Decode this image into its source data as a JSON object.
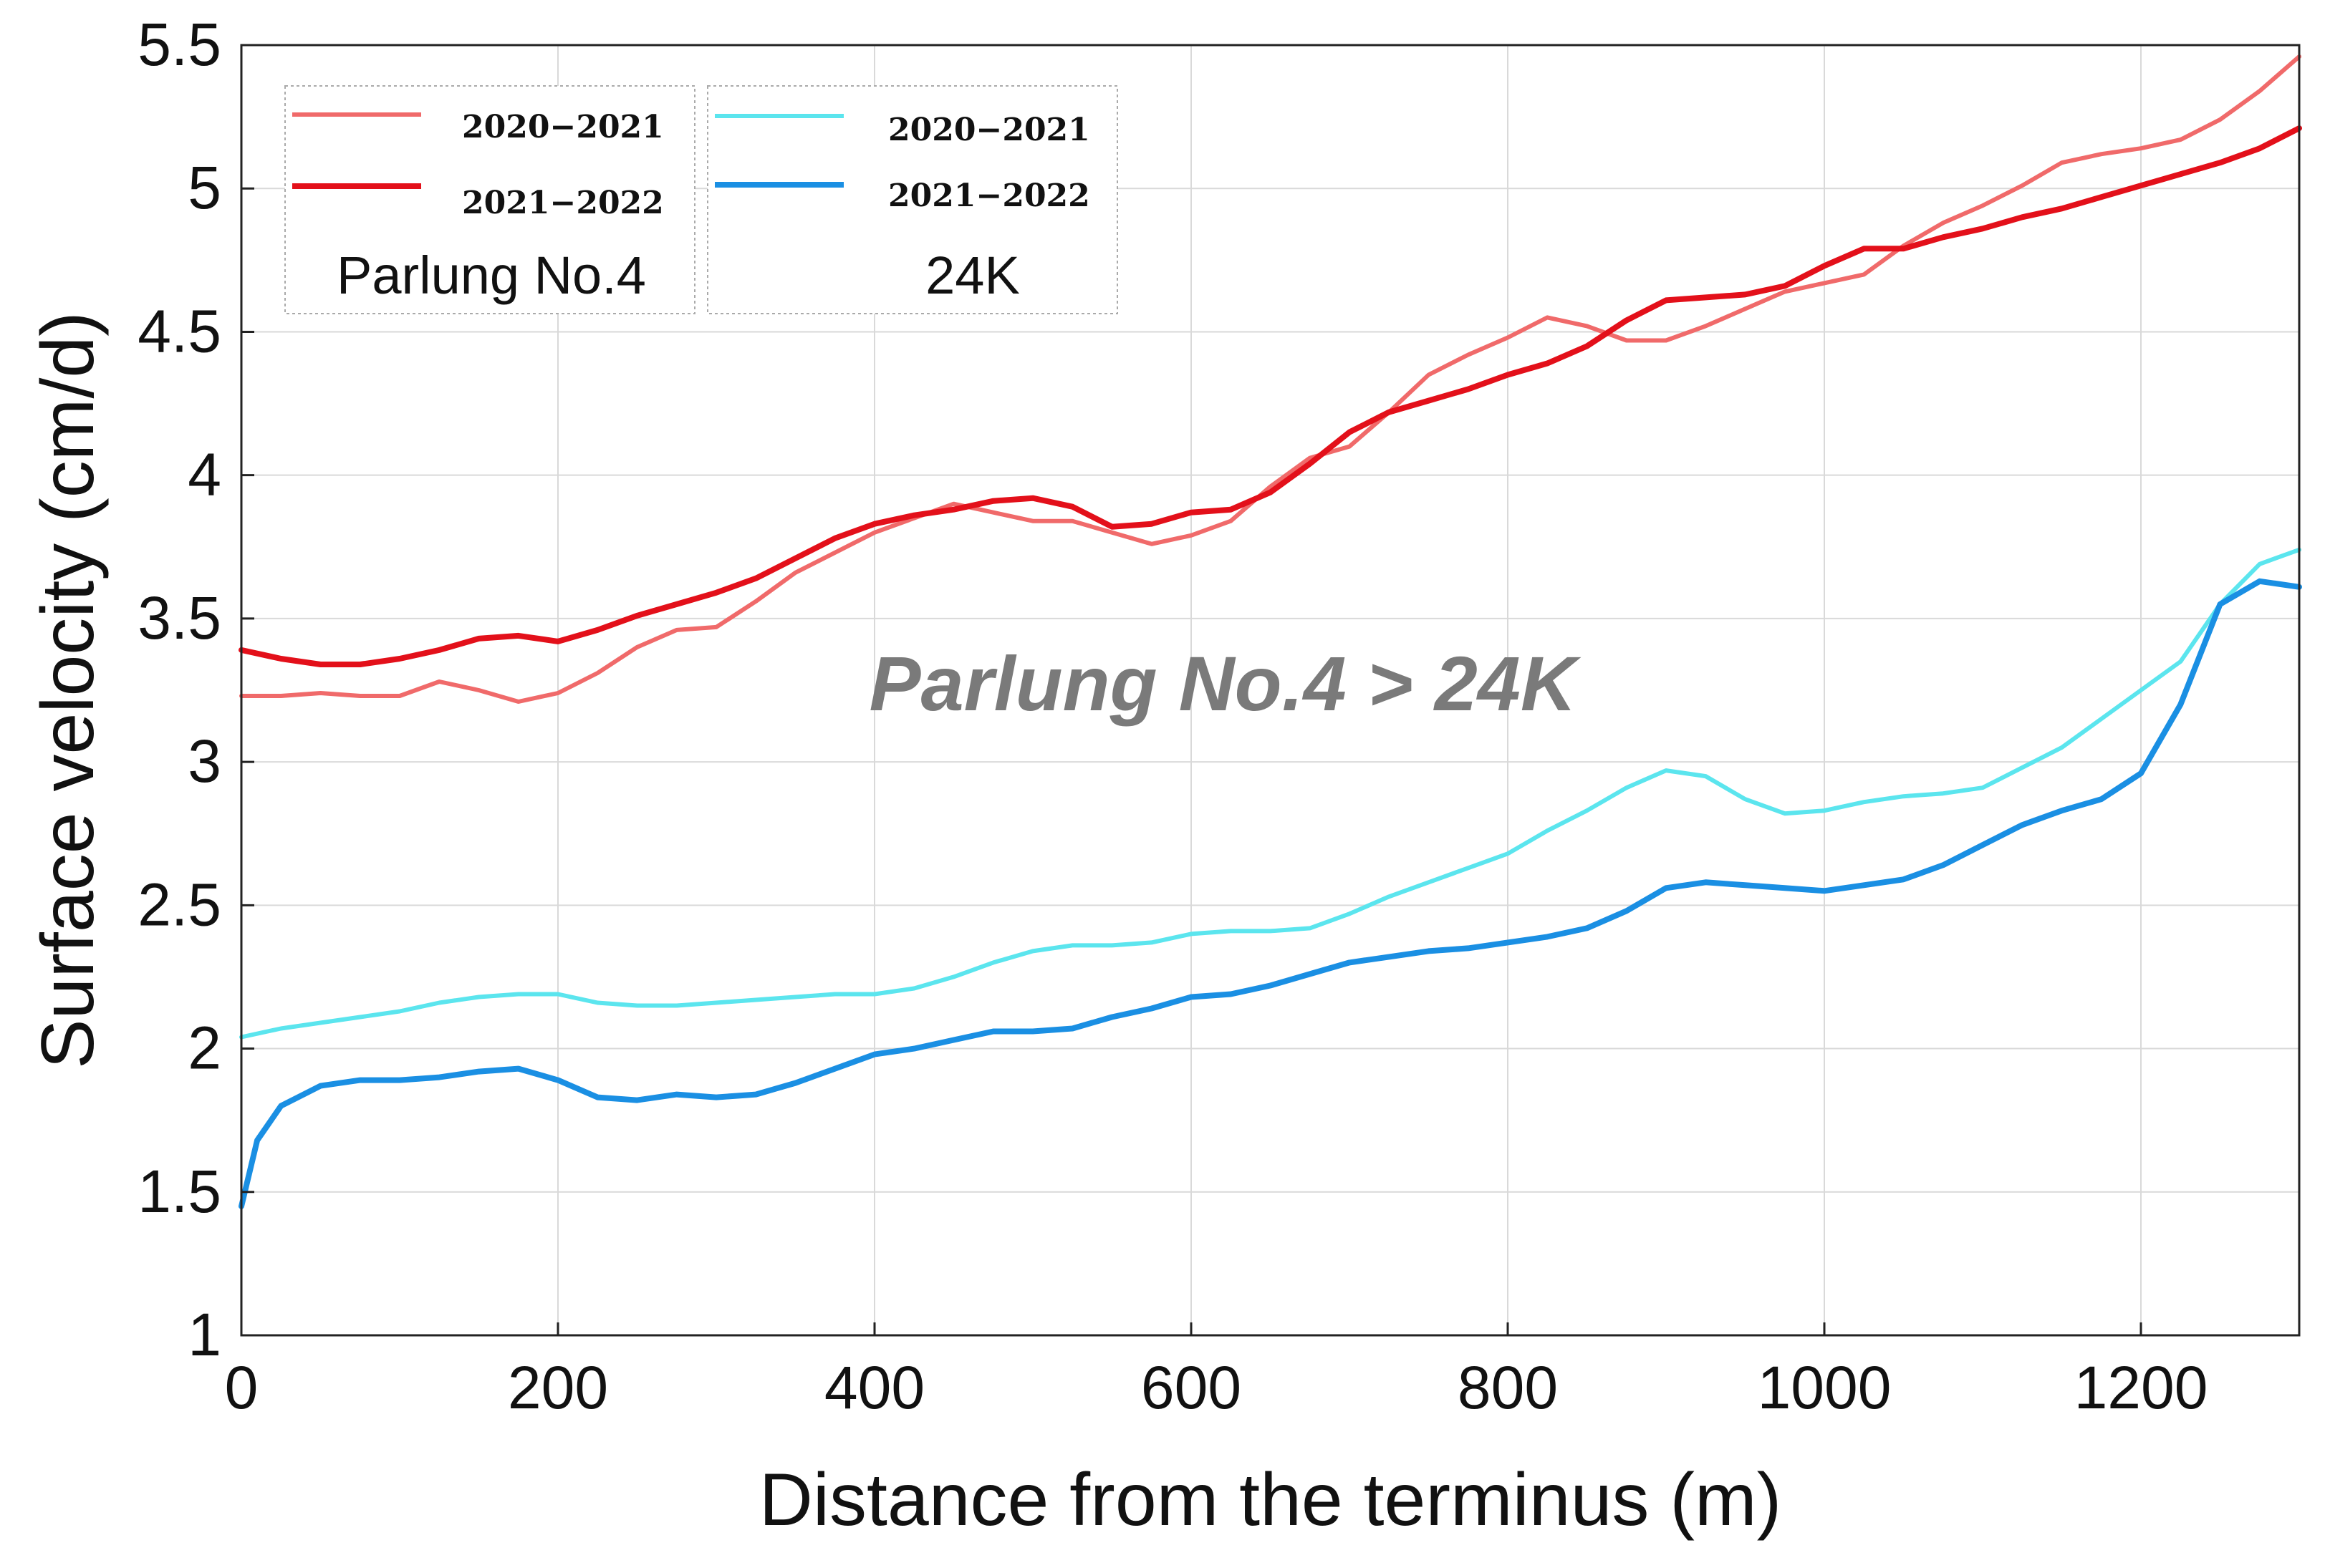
{
  "chart_data": {
    "type": "line",
    "title": "",
    "xlabel": "Distance from the terminus (m)",
    "ylabel": "Surface velocity (cm/d)",
    "xlim": [
      0,
      1300
    ],
    "ylim": [
      1,
      5.5
    ],
    "xticks": [
      0,
      200,
      400,
      600,
      800,
      1000,
      1200
    ],
    "yticks": [
      1,
      1.5,
      2,
      2.5,
      3,
      3.5,
      4,
      4.5,
      5,
      5.5
    ],
    "xtick_labels": [
      "0",
      "200",
      "400",
      "600",
      "800",
      "1000",
      "1200"
    ],
    "ytick_labels": [
      "1",
      "1.5",
      "2",
      "2.5",
      "3",
      "3.5",
      "4",
      "4.5",
      "5",
      "5.5"
    ],
    "grid": true,
    "annotation": "Parlung No.4  > 24K",
    "legend_groups": [
      {
        "name": "Parlung No.4",
        "entries": [
          "2020−2021",
          "2021−2022"
        ]
      },
      {
        "name": "24K",
        "entries": [
          "2020−2021",
          "2021−2022"
        ]
      }
    ],
    "series": [
      {
        "name": "Parlung No.4 2020−2021",
        "color": "#f06a6a",
        "x": [
          0,
          25,
          50,
          75,
          100,
          125,
          150,
          175,
          200,
          225,
          250,
          275,
          300,
          325,
          350,
          375,
          400,
          425,
          450,
          475,
          500,
          525,
          550,
          575,
          600,
          625,
          650,
          675,
          700,
          725,
          750,
          775,
          800,
          825,
          850,
          875,
          900,
          925,
          950,
          975,
          1000,
          1025,
          1050,
          1075,
          1100,
          1125,
          1150,
          1175,
          1200,
          1225,
          1250,
          1275,
          1300
        ],
        "values": [
          3.23,
          3.23,
          3.24,
          3.23,
          3.23,
          3.28,
          3.25,
          3.21,
          3.24,
          3.31,
          3.4,
          3.46,
          3.47,
          3.56,
          3.66,
          3.73,
          3.8,
          3.85,
          3.9,
          3.87,
          3.84,
          3.84,
          3.8,
          3.76,
          3.79,
          3.84,
          3.96,
          4.06,
          4.1,
          4.22,
          4.35,
          4.42,
          4.48,
          4.55,
          4.52,
          4.47,
          4.47,
          4.52,
          4.58,
          4.64,
          4.67,
          4.7,
          4.8,
          4.88,
          4.94,
          5.01,
          5.09,
          5.12,
          5.14,
          5.17,
          5.24,
          5.34,
          5.46
        ]
      },
      {
        "name": "Parlung No.4 2021−2022",
        "color": "#e3101a",
        "x": [
          0,
          25,
          50,
          75,
          100,
          125,
          150,
          175,
          200,
          225,
          250,
          275,
          300,
          325,
          350,
          375,
          400,
          425,
          450,
          475,
          500,
          525,
          550,
          575,
          600,
          625,
          650,
          675,
          700,
          725,
          750,
          775,
          800,
          825,
          850,
          875,
          900,
          925,
          950,
          975,
          1000,
          1025,
          1050,
          1075,
          1100,
          1125,
          1150,
          1175,
          1200,
          1225,
          1250,
          1275,
          1300
        ],
        "values": [
          3.39,
          3.36,
          3.34,
          3.34,
          3.36,
          3.39,
          3.43,
          3.44,
          3.42,
          3.46,
          3.51,
          3.55,
          3.59,
          3.64,
          3.71,
          3.78,
          3.83,
          3.86,
          3.88,
          3.91,
          3.92,
          3.89,
          3.82,
          3.83,
          3.87,
          3.88,
          3.94,
          4.04,
          4.15,
          4.22,
          4.26,
          4.3,
          4.35,
          4.39,
          4.45,
          4.54,
          4.61,
          4.62,
          4.63,
          4.66,
          4.73,
          4.79,
          4.79,
          4.83,
          4.86,
          4.9,
          4.93,
          4.97,
          5.01,
          5.05,
          5.09,
          5.14,
          5.21
        ]
      },
      {
        "name": "24K 2020−2021",
        "color": "#5be5ee",
        "x": [
          0,
          25,
          50,
          75,
          100,
          125,
          150,
          175,
          200,
          225,
          250,
          275,
          300,
          325,
          350,
          375,
          400,
          425,
          450,
          475,
          500,
          525,
          550,
          575,
          600,
          625,
          650,
          675,
          700,
          725,
          750,
          775,
          800,
          825,
          850,
          875,
          900,
          925,
          950,
          975,
          1000,
          1025,
          1050,
          1075,
          1100,
          1125,
          1150,
          1175,
          1200,
          1225,
          1250,
          1275,
          1300
        ],
        "values": [
          2.04,
          2.07,
          2.09,
          2.11,
          2.13,
          2.16,
          2.18,
          2.19,
          2.19,
          2.16,
          2.15,
          2.15,
          2.16,
          2.17,
          2.18,
          2.19,
          2.19,
          2.21,
          2.25,
          2.3,
          2.34,
          2.36,
          2.36,
          2.37,
          2.4,
          2.41,
          2.41,
          2.42,
          2.47,
          2.53,
          2.58,
          2.63,
          2.68,
          2.76,
          2.83,
          2.91,
          2.97,
          2.95,
          2.87,
          2.82,
          2.83,
          2.86,
          2.88,
          2.89,
          2.91,
          2.98,
          3.05,
          3.15,
          3.25,
          3.35,
          3.55,
          3.69,
          3.74
        ]
      },
      {
        "name": "24K 2021−2022",
        "color": "#1a8fe3",
        "x": [
          0,
          10,
          25,
          50,
          75,
          100,
          125,
          150,
          175,
          200,
          225,
          250,
          275,
          300,
          325,
          350,
          375,
          400,
          425,
          450,
          475,
          500,
          525,
          550,
          575,
          600,
          625,
          650,
          675,
          700,
          725,
          750,
          775,
          800,
          825,
          850,
          875,
          900,
          925,
          950,
          975,
          1000,
          1025,
          1050,
          1075,
          1100,
          1125,
          1150,
          1175,
          1200,
          1225,
          1250,
          1275,
          1300
        ],
        "values": [
          1.45,
          1.68,
          1.8,
          1.87,
          1.89,
          1.89,
          1.9,
          1.92,
          1.93,
          1.89,
          1.83,
          1.82,
          1.84,
          1.83,
          1.84,
          1.88,
          1.93,
          1.98,
          2.0,
          2.03,
          2.06,
          2.06,
          2.07,
          2.11,
          2.14,
          2.18,
          2.19,
          2.22,
          2.26,
          2.3,
          2.32,
          2.34,
          2.35,
          2.37,
          2.39,
          2.42,
          2.48,
          2.56,
          2.58,
          2.57,
          2.56,
          2.55,
          2.57,
          2.59,
          2.64,
          2.71,
          2.78,
          2.83,
          2.87,
          2.96,
          3.2,
          3.55,
          3.63,
          3.61
        ]
      }
    ]
  }
}
